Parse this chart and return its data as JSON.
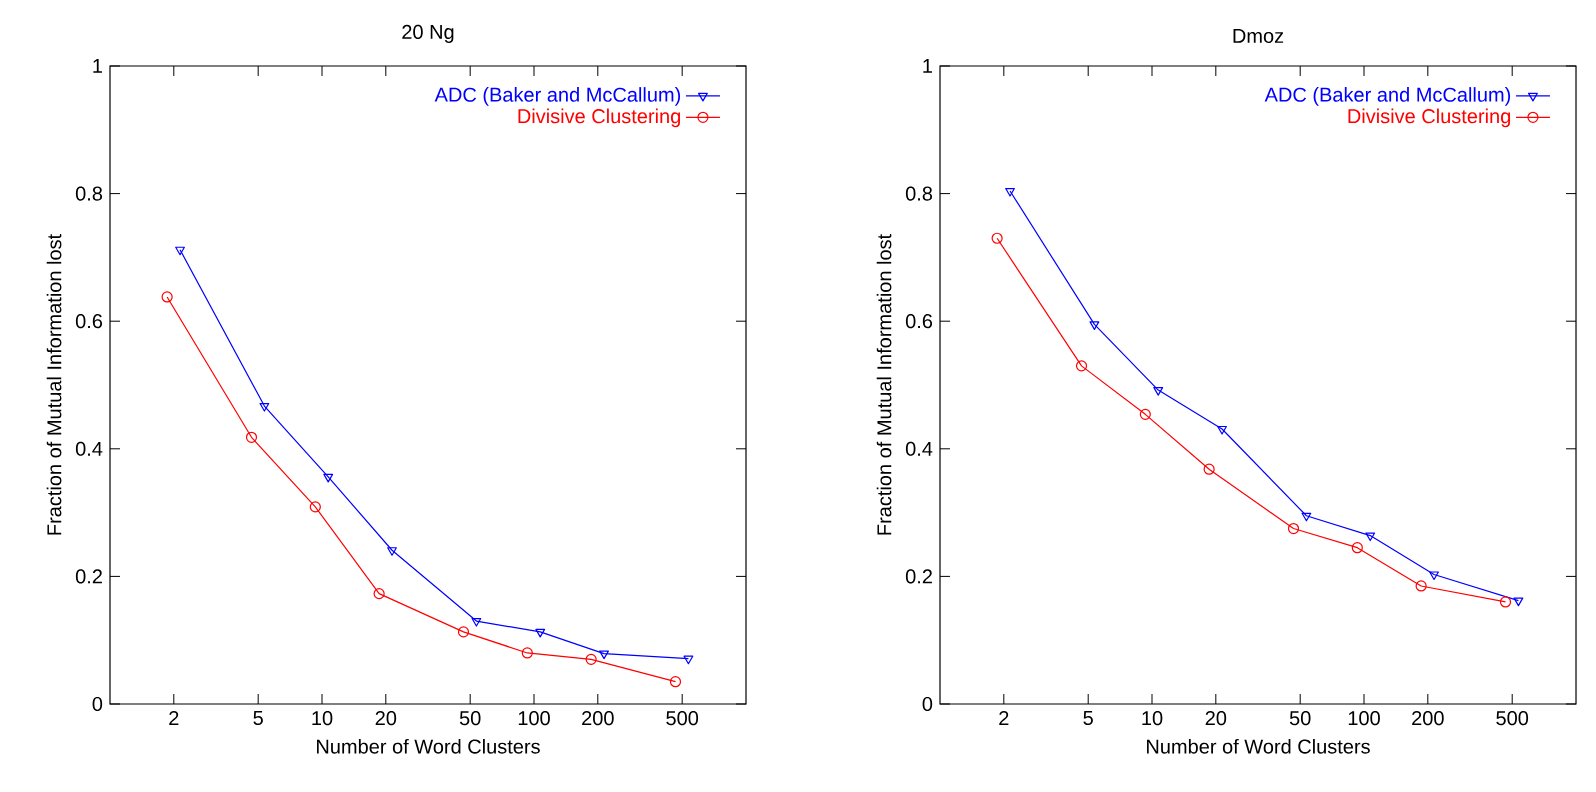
{
  "chart_data": [
    {
      "type": "line",
      "title": "20 Ng",
      "xlabel": "Number of Word Clusters",
      "ylabel": "Fraction of Mutual Information lost",
      "log": "x",
      "xlim": [
        1,
        1000
      ],
      "xticks": [
        2,
        5,
        10,
        20,
        50,
        100,
        200,
        500
      ],
      "ylim": [
        0,
        1
      ],
      "yticks": [
        0,
        0.2,
        0.4,
        0.6,
        0.8,
        1
      ],
      "grid": false,
      "legend": "top right",
      "line_style": "solid",
      "series": [
        {
          "name": "ADC (Baker and McCallum)",
          "color": "#0000ff",
          "marker": "triangle",
          "x": [
            2.14,
            5.35,
            10.7,
            21.4,
            53.5,
            107,
            214,
            535
          ],
          "values": [
            0.712,
            0.467,
            0.356,
            0.241,
            0.13,
            0.113,
            0.079,
            0.071
          ]
        },
        {
          "name": "Divisive Clustering",
          "color": "#ff0000",
          "marker": "circle",
          "x": [
            1.86,
            4.65,
            9.3,
            18.6,
            46.5,
            93,
            186,
            465
          ],
          "values": [
            0.638,
            0.418,
            0.309,
            0.173,
            0.113,
            0.08,
            0.07,
            0.035
          ]
        }
      ]
    },
    {
      "type": "line",
      "title": "Dmoz",
      "xlabel": "Number of Word Clusters",
      "ylabel": "Fraction of Mutual Information lost",
      "log": "x",
      "xlim": [
        1,
        1000
      ],
      "xticks": [
        2,
        5,
        10,
        20,
        50,
        100,
        200,
        500
      ],
      "ylim": [
        0,
        1
      ],
      "yticks": [
        0,
        0.2,
        0.4,
        0.6,
        0.8,
        1
      ],
      "grid": false,
      "legend": "top right",
      "line_style": "solid",
      "series": [
        {
          "name": "ADC (Baker and McCallum)",
          "color": "#0000ff",
          "marker": "triangle",
          "x": [
            2.14,
            5.35,
            10.7,
            21.4,
            53.5,
            107,
            214,
            535
          ],
          "values": [
            0.804,
            0.595,
            0.492,
            0.431,
            0.295,
            0.264,
            0.203,
            0.162
          ]
        },
        {
          "name": "Divisive Clustering",
          "color": "#ff0000",
          "marker": "circle",
          "x": [
            1.86,
            4.65,
            9.3,
            18.6,
            46.5,
            93,
            186,
            465
          ],
          "values": [
            0.73,
            0.53,
            0.454,
            0.368,
            0.275,
            0.245,
            0.185,
            0.16
          ]
        }
      ]
    }
  ]
}
